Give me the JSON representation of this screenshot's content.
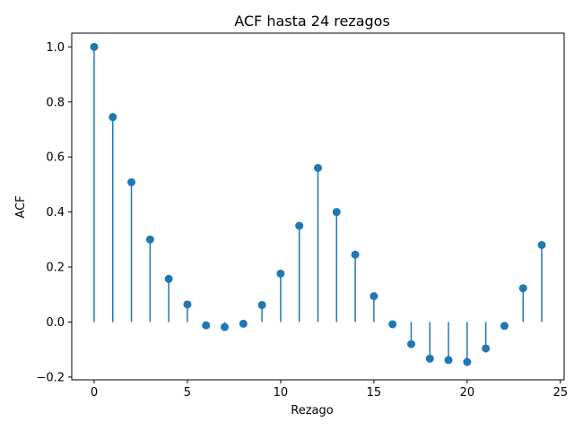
{
  "chart_data": {
    "type": "stem",
    "title": "ACF hasta 24 rezagos",
    "xlabel": "Rezago",
    "ylabel": "ACF",
    "xlim": [
      -1.2,
      25.2
    ],
    "ylim": [
      -0.21,
      1.05
    ],
    "x_ticks": [
      0,
      5,
      10,
      15,
      20,
      25
    ],
    "y_ticks": [
      -0.2,
      0.0,
      0.2,
      0.4,
      0.6,
      0.8,
      1.0
    ],
    "x_tick_labels": [
      "0",
      "5",
      "10",
      "15",
      "20",
      "25"
    ],
    "y_tick_labels": [
      "−0.2",
      "0.0",
      "0.2",
      "0.4",
      "0.6",
      "0.8",
      "1.0"
    ],
    "grid": false,
    "legend": false,
    "color": "#1f77b4",
    "series": [
      {
        "x": [
          0,
          1,
          2,
          3,
          4,
          5,
          6,
          7,
          8,
          9,
          10,
          11,
          12,
          13,
          14,
          15,
          16,
          17,
          18,
          19,
          20,
          21,
          22,
          23,
          24
        ],
        "values": [
          1.0,
          0.745,
          0.508,
          0.3,
          0.157,
          0.064,
          -0.012,
          -0.018,
          -0.006,
          0.062,
          0.176,
          0.35,
          0.56,
          0.4,
          0.245,
          0.094,
          -0.008,
          -0.08,
          -0.133,
          -0.138,
          -0.145,
          -0.096,
          -0.014,
          0.123,
          0.28
        ]
      }
    ]
  }
}
